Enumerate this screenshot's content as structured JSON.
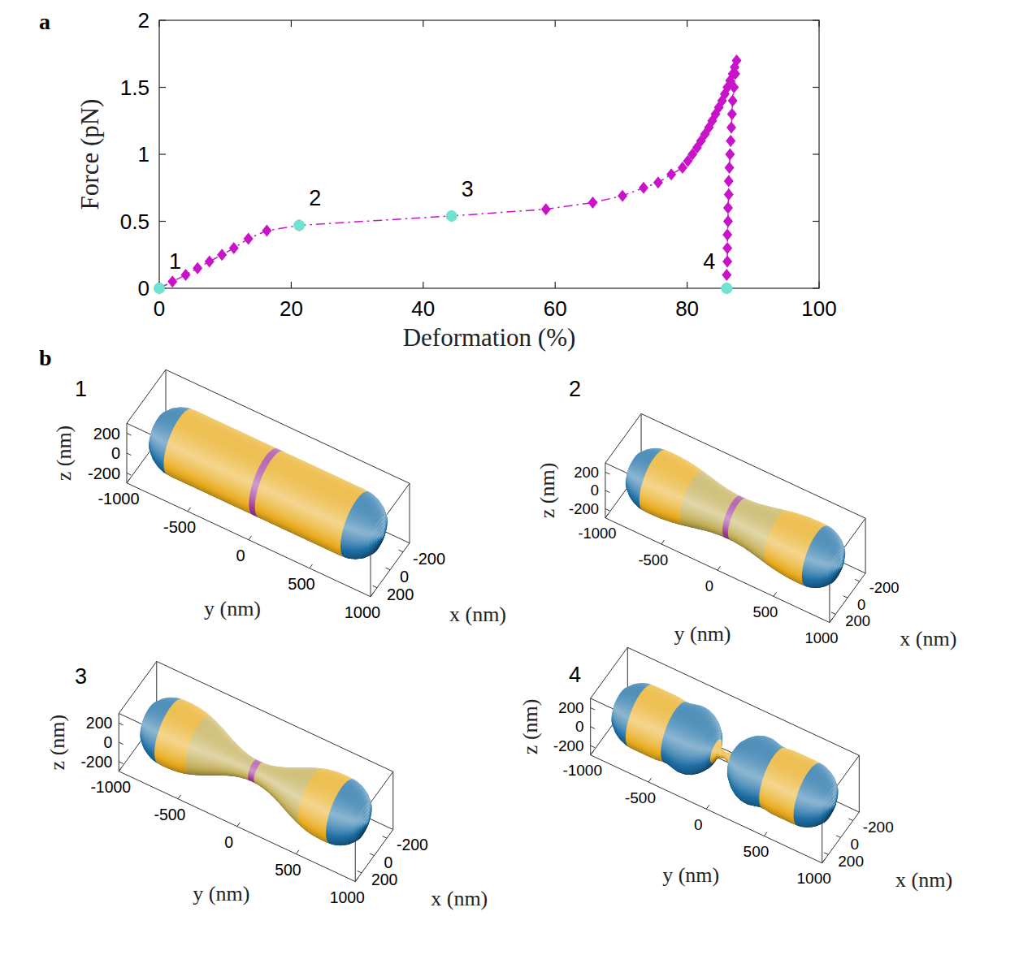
{
  "panel_labels": [
    "a",
    "b"
  ],
  "chart_data": [
    {
      "type": "line",
      "xlabel": "Deformation (%)",
      "ylabel": "Force (pN)",
      "xlim": [
        0,
        100
      ],
      "xticks": [
        0,
        20,
        40,
        60,
        80,
        100
      ],
      "ylim": [
        0,
        2
      ],
      "yticks": [
        0,
        0.5,
        1,
        1.5,
        2
      ],
      "series": [
        {
          "type": "line",
          "color": "#c814c8",
          "marker": "diamond",
          "line_style": "dashdot",
          "x": [
            0,
            2,
            4,
            5.8,
            7.6,
            9.5,
            11.3,
            13.5,
            16.3,
            21.2,
            44.3,
            58.6,
            65.7,
            70.2,
            73.4,
            75.6,
            77.6,
            79.3,
            80.1,
            80.8,
            81.5,
            82.1,
            82.7,
            83.3,
            83.8,
            84.3,
            84.8,
            85.3,
            85.7,
            86.1,
            86.5,
            86.9,
            87.2,
            87.5,
            87.3,
            87.1,
            86.9,
            86.8,
            86.7,
            86.6,
            86.5,
            86.4,
            86.3,
            86.3,
            86.2,
            86.2,
            86.1,
            86.1,
            86.1,
            86.0,
            86.0
          ],
          "values": [
            0,
            0.05,
            0.1,
            0.15,
            0.2,
            0.25,
            0.3,
            0.37,
            0.43,
            0.47,
            0.54,
            0.59,
            0.64,
            0.69,
            0.75,
            0.79,
            0.85,
            0.9,
            0.95,
            1.0,
            1.05,
            1.1,
            1.15,
            1.2,
            1.25,
            1.3,
            1.35,
            1.4,
            1.45,
            1.5,
            1.55,
            1.6,
            1.65,
            1.7,
            1.6,
            1.5,
            1.4,
            1.3,
            1.2,
            1.1,
            1.0,
            0.9,
            0.8,
            0.7,
            0.6,
            0.5,
            0.4,
            0.3,
            0.2,
            0.1,
            0.0
          ]
        },
        {
          "type": "scatter",
          "color": "#6fe3d0",
          "marker": "circle",
          "x": [
            0,
            21.2,
            44.3,
            86.0
          ],
          "values": [
            0,
            0.47,
            0.54,
            0
          ]
        }
      ],
      "annotations": [
        {
          "text": "1",
          "x": 0,
          "y": 0
        },
        {
          "text": "2",
          "x": 21.2,
          "y": 0.47
        },
        {
          "text": "3",
          "x": 44.3,
          "y": 0.54
        },
        {
          "text": "4",
          "x": 86.0,
          "y": 0
        }
      ]
    },
    {
      "type": "surface",
      "title": "1",
      "xlabel": "x (nm)",
      "ylabel": "y (nm)",
      "zlabel": "z (nm)",
      "xlim": [
        -300,
        300
      ],
      "ylim": [
        -1000,
        1000
      ],
      "zlim": [
        -300,
        300
      ],
      "xticks": [
        -200,
        0,
        200
      ],
      "yticks": [
        -1000,
        -500,
        0,
        500,
        1000
      ],
      "zticks": [
        -200,
        0,
        200
      ],
      "profile": {
        "y": [
          -950,
          -900,
          -850,
          -800,
          -750,
          -700,
          -650,
          -600,
          -550,
          -500,
          -450,
          -400,
          -350,
          -300,
          -250,
          -200,
          -150,
          -100,
          -50,
          0,
          50,
          100,
          150,
          200,
          250,
          300,
          350,
          400,
          450,
          500,
          550,
          600,
          650,
          700,
          750,
          800,
          850,
          900,
          950
        ],
        "radius": [
          0,
          150,
          200,
          229,
          245,
          250,
          250,
          250,
          250,
          250,
          250,
          250,
          250,
          250,
          250,
          250,
          250,
          250,
          250,
          250,
          250,
          250,
          250,
          250,
          250,
          250,
          250,
          250,
          250,
          250,
          250,
          250,
          250,
          250,
          245,
          229,
          200,
          150,
          0
        ],
        "colors": [
          "#1d6fa5",
          "#1d6fa5",
          "#1d6fa5",
          "#1d6fa5",
          "#1d6fa5",
          "#e9ac1f",
          "#e9ac1f",
          "#e9ac1f",
          "#e9ac1f",
          "#e9ac1f",
          "#e9ac1f",
          "#e9ac1f",
          "#e9ac1f",
          "#e9ac1f",
          "#e9ac1f",
          "#e9ac1f",
          "#e9ac1f",
          "#e9ac1f",
          "#e9ac1f",
          "#a23b9d",
          "#e9ac1f",
          "#e9ac1f",
          "#e9ac1f",
          "#e9ac1f",
          "#e9ac1f",
          "#e9ac1f",
          "#e9ac1f",
          "#e9ac1f",
          "#e9ac1f",
          "#e9ac1f",
          "#e9ac1f",
          "#e9ac1f",
          "#e9ac1f",
          "#e9ac1f",
          "#1d6fa5",
          "#1d6fa5",
          "#1d6fa5",
          "#1d6fa5",
          "#1d6fa5"
        ]
      }
    },
    {
      "type": "surface",
      "title": "2",
      "xlabel": "x (nm)",
      "ylabel": "y (nm)",
      "zlabel": "z (nm)",
      "xlim": [
        -300,
        300
      ],
      "ylim": [
        -1000,
        1000
      ],
      "zlim": [
        -300,
        300
      ],
      "xticks": [
        -200,
        0,
        200
      ],
      "yticks": [
        -1000,
        -500,
        0,
        500,
        1000
      ],
      "zticks": [
        -200,
        0,
        200
      ],
      "profile": {
        "y": [
          -950,
          -900,
          -850,
          -800,
          -750,
          -700,
          -650,
          -600,
          -550,
          -500,
          -450,
          -400,
          -350,
          -300,
          -250,
          -200,
          -150,
          -100,
          -50,
          0,
          50,
          100,
          150,
          200,
          250,
          300,
          350,
          400,
          450,
          500,
          550,
          600,
          650,
          700,
          750,
          800,
          850,
          900,
          950
        ],
        "radius": [
          0,
          150,
          200,
          229,
          245,
          250,
          250,
          249,
          246,
          241,
          234,
          226,
          217,
          207,
          197,
          188,
          180,
          175,
          171,
          170,
          171,
          175,
          180,
          188,
          197,
          207,
          217,
          226,
          234,
          241,
          246,
          249,
          250,
          250,
          245,
          229,
          200,
          150,
          0
        ],
        "colors": [
          "#1d6fa5",
          "#1d6fa5",
          "#1d6fa5",
          "#1d6fa5",
          "#1d6fa5",
          "#e9ac1f",
          "#e9ac1f",
          "#e9ac1f",
          "#e9ac1f",
          "#e9ac1f",
          "#e9ac1f",
          "#e9ac1f",
          "#c2ae55",
          "#c2ae55",
          "#c2ae55",
          "#c2ae55",
          "#c2ae55",
          "#c2ae55",
          "#c2ae55",
          "#a23b9d",
          "#c2ae55",
          "#c2ae55",
          "#c2ae55",
          "#c2ae55",
          "#c2ae55",
          "#c2ae55",
          "#c2ae55",
          "#e9ac1f",
          "#e9ac1f",
          "#e9ac1f",
          "#e9ac1f",
          "#e9ac1f",
          "#e9ac1f",
          "#e9ac1f",
          "#1d6fa5",
          "#1d6fa5",
          "#1d6fa5",
          "#1d6fa5",
          "#1d6fa5"
        ]
      }
    },
    {
      "type": "surface",
      "title": "3",
      "xlabel": "x (nm)",
      "ylabel": "y (nm)",
      "zlabel": "z (nm)",
      "xlim": [
        -300,
        300
      ],
      "ylim": [
        -1000,
        1000
      ],
      "zlim": [
        -300,
        300
      ],
      "xticks": [
        -200,
        0,
        200
      ],
      "yticks": [
        -1000,
        -500,
        0,
        500,
        1000
      ],
      "zticks": [
        -200,
        0,
        200
      ],
      "profile": {
        "y": [
          -950,
          -900,
          -850,
          -800,
          -750,
          -700,
          -650,
          -600,
          -550,
          -500,
          -450,
          -400,
          -350,
          -300,
          -250,
          -200,
          -150,
          -100,
          -50,
          0,
          50,
          100,
          150,
          200,
          250,
          300,
          350,
          400,
          450,
          500,
          550,
          600,
          650,
          700,
          750,
          800,
          850,
          900,
          950
        ],
        "radius": [
          0,
          152,
          203,
          232,
          248,
          253,
          253,
          250,
          244,
          233,
          218,
          200,
          180,
          158,
          137,
          118,
          102,
          90,
          82,
          80,
          82,
          90,
          102,
          118,
          137,
          158,
          180,
          200,
          218,
          233,
          244,
          250,
          253,
          253,
          248,
          232,
          203,
          152,
          0
        ],
        "colors": [
          "#1d6fa5",
          "#1d6fa5",
          "#1d6fa5",
          "#1d6fa5",
          "#1d6fa5",
          "#e9ac1f",
          "#e9ac1f",
          "#e9ac1f",
          "#e9ac1f",
          "#e9ac1f",
          "#c2ae55",
          "#c2ae55",
          "#c2ae55",
          "#c2ae55",
          "#c2ae55",
          "#c2ae55",
          "#c2ae55",
          "#c2ae55",
          "#c2ae55",
          "#a23b9d",
          "#c2ae55",
          "#c2ae55",
          "#c2ae55",
          "#c2ae55",
          "#c2ae55",
          "#c2ae55",
          "#c2ae55",
          "#c2ae55",
          "#c2ae55",
          "#e9ac1f",
          "#e9ac1f",
          "#e9ac1f",
          "#e9ac1f",
          "#e9ac1f",
          "#1d6fa5",
          "#1d6fa5",
          "#1d6fa5",
          "#1d6fa5",
          "#1d6fa5"
        ]
      }
    },
    {
      "type": "surface",
      "title": "4",
      "xlabel": "x (nm)",
      "ylabel": "y (nm)",
      "zlabel": "z (nm)",
      "xlim": [
        -300,
        300
      ],
      "ylim": [
        -1000,
        1000
      ],
      "zlim": [
        -300,
        300
      ],
      "xticks": [
        -200,
        0,
        200
      ],
      "yticks": [
        -1000,
        -500,
        0,
        500,
        1000
      ],
      "zticks": [
        -200,
        0,
        200
      ],
      "profile": {
        "y": [
          -950,
          -900,
          -850,
          -800,
          -750,
          -700,
          -650,
          -600,
          -550,
          -500,
          -450,
          -400,
          -350,
          -300,
          -250,
          -200,
          -150,
          -100,
          -50,
          0,
          50,
          100,
          150,
          200,
          250,
          300,
          350,
          400,
          450,
          500,
          550,
          600,
          650,
          700,
          750,
          800,
          850,
          900,
          950
        ],
        "radius": [
          0,
          150,
          200,
          229,
          245,
          250,
          250,
          250,
          250,
          249,
          242,
          240,
          252,
          262,
          258,
          240,
          205,
          150,
          40,
          25,
          40,
          150,
          205,
          240,
          258,
          262,
          252,
          240,
          242,
          249,
          250,
          250,
          250,
          250,
          245,
          229,
          200,
          150,
          0
        ],
        "colors": [
          "#1d6fa5",
          "#1d6fa5",
          "#1d6fa5",
          "#1d6fa5",
          "#1d6fa5",
          "#e9ac1f",
          "#e9ac1f",
          "#e9ac1f",
          "#e9ac1f",
          "#e9ac1f",
          "#e9ac1f",
          "#1d6fa5",
          "#1d6fa5",
          "#1d6fa5",
          "#1d6fa5",
          "#1d6fa5",
          "#1d6fa5",
          "#1d6fa5",
          "#e9ac1f",
          "#e9ac1f",
          "#e9ac1f",
          "#1d6fa5",
          "#1d6fa5",
          "#1d6fa5",
          "#1d6fa5",
          "#1d6fa5",
          "#1d6fa5",
          "#1d6fa5",
          "#e9ac1f",
          "#e9ac1f",
          "#e9ac1f",
          "#e9ac1f",
          "#e9ac1f",
          "#e9ac1f",
          "#1d6fa5",
          "#1d6fa5",
          "#1d6fa5",
          "#1d6fa5",
          "#1d6fa5"
        ]
      }
    }
  ]
}
